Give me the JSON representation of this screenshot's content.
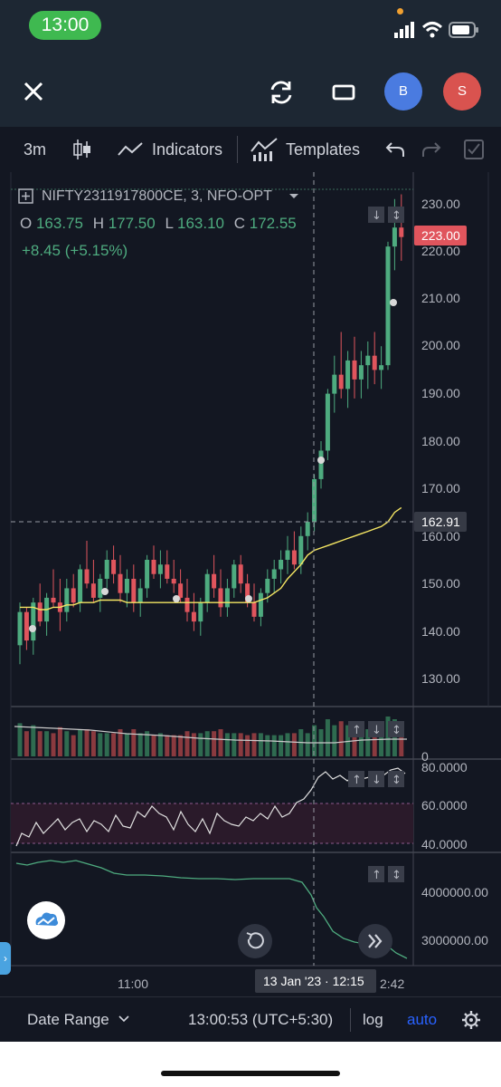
{
  "status_bar": {
    "time": "13:00"
  },
  "top_bar": {
    "close_icon": "close-icon",
    "refresh_icon": "refresh-icon",
    "fullscreen_icon": "window-icon",
    "avatars": [
      {
        "letter": "B",
        "color": "#4a7be0"
      },
      {
        "letter": "S",
        "color": "#d9534f"
      }
    ]
  },
  "toolbar": {
    "interval": "3m",
    "indicators_label": "Indicators",
    "templates_label": "Templates"
  },
  "legend": {
    "symbol": "NIFTY2311917800CE, 3, NFO-OPT",
    "o_label": "O",
    "o_value": "163.75",
    "h_label": "H",
    "h_value": "177.50",
    "l_label": "L",
    "l_value": "163.10",
    "c_label": "C",
    "c_value": "172.55",
    "change": "+8.45 (+5.15%)"
  },
  "price_axis": {
    "labels": [
      "230.00",
      "220.00",
      "210.00",
      "200.00",
      "190.00",
      "180.00",
      "170.00",
      "160.00",
      "150.00",
      "140.00",
      "130.00"
    ],
    "last_price": "223.00",
    "crosshair_price": "162.91"
  },
  "rsi_axis": {
    "labels": [
      "80.0000",
      "60.0000",
      "40.0000"
    ]
  },
  "obv_axis": {
    "labels": [
      "4000000.00",
      "3000000.00"
    ]
  },
  "volume_axis": {
    "labels": [
      "0"
    ]
  },
  "time_axis": {
    "label_1100": "11:00",
    "crosshair_time": "13 Jan '23  ·  12:15",
    "partial_label": "2:42"
  },
  "bottom_bar": {
    "date_range": "Date Range",
    "clock": "13:00:53 (UTC+5:30)",
    "log": "log",
    "auto": "auto"
  },
  "colors": {
    "up": "#4eab7f",
    "down": "#e0555d",
    "ma": "#f5e663",
    "background": "#131722",
    "accent": "#2962ff"
  },
  "chart_data": {
    "type": "candlestick",
    "price_range": [
      125,
      232
    ],
    "candles": [
      [
        137,
        146,
        133,
        144
      ],
      [
        144,
        145,
        136,
        138
      ],
      [
        138,
        147,
        135,
        146
      ],
      [
        146,
        150,
        141,
        142
      ],
      [
        142,
        148,
        139,
        147
      ],
      [
        147,
        153,
        145,
        146
      ],
      [
        146,
        151,
        140,
        144
      ],
      [
        144,
        151,
        142,
        149
      ],
      [
        149,
        152,
        145,
        146
      ],
      [
        146,
        154,
        144,
        153
      ],
      [
        153,
        159,
        149,
        150
      ],
      [
        150,
        155,
        146,
        147
      ],
      [
        147,
        152,
        144,
        151
      ],
      [
        151,
        157,
        149,
        155
      ],
      [
        155,
        158,
        150,
        152
      ],
      [
        152,
        156,
        146,
        148
      ],
      [
        148,
        153,
        145,
        151
      ],
      [
        151,
        154,
        144,
        146
      ],
      [
        146,
        151,
        143,
        149
      ],
      [
        149,
        156,
        147,
        155
      ],
      [
        155,
        158,
        151,
        152
      ],
      [
        152,
        157,
        149,
        154
      ],
      [
        154,
        157,
        150,
        151
      ],
      [
        151,
        155,
        148,
        150
      ],
      [
        150,
        153,
        146,
        147
      ],
      [
        147,
        151,
        142,
        144
      ],
      [
        144,
        148,
        140,
        142
      ],
      [
        142,
        147,
        139,
        146
      ],
      [
        146,
        153,
        144,
        152
      ],
      [
        152,
        156,
        147,
        149
      ],
      [
        149,
        153,
        143,
        145
      ],
      [
        145,
        151,
        143,
        149
      ],
      [
        149,
        155,
        147,
        154
      ],
      [
        154,
        156,
        148,
        150
      ],
      [
        150,
        152,
        145,
        146
      ],
      [
        146,
        150,
        142,
        143
      ],
      [
        143,
        149,
        141,
        148
      ],
      [
        148,
        153,
        146,
        151
      ],
      [
        151,
        155,
        148,
        153
      ],
      [
        153,
        157,
        150,
        155
      ],
      [
        155,
        160,
        152,
        157
      ],
      [
        157,
        161,
        153,
        154
      ],
      [
        154,
        162,
        152,
        160
      ],
      [
        160,
        165,
        157,
        163
      ],
      [
        163,
        173,
        161,
        172
      ],
      [
        172,
        180,
        170,
        178
      ],
      [
        178,
        191,
        176,
        190
      ],
      [
        190,
        198,
        186,
        194
      ],
      [
        194,
        203,
        189,
        191
      ],
      [
        191,
        199,
        187,
        197
      ],
      [
        197,
        202,
        189,
        193
      ],
      [
        193,
        199,
        189,
        196
      ],
      [
        196,
        201,
        191,
        198
      ],
      [
        198,
        203,
        192,
        195
      ],
      [
        195,
        200,
        191,
        196
      ],
      [
        196,
        222,
        195,
        221
      ],
      [
        221,
        231,
        216,
        225
      ],
      [
        225,
        232,
        218,
        223
      ]
    ],
    "ma_values": [
      145,
      145,
      145,
      144.5,
      144.5,
      145,
      145,
      145.5,
      145.5,
      146,
      146,
      146,
      146.5,
      146.5,
      146.5,
      146.5,
      146,
      146,
      146,
      146,
      146,
      146,
      146,
      146,
      146,
      146,
      146,
      146,
      146,
      146,
      146,
      146,
      146,
      146,
      146,
      146,
      146.5,
      147,
      148,
      149,
      151,
      152.5,
      154,
      156,
      157,
      157.5,
      158,
      158.5,
      159,
      159.5,
      160,
      160.5,
      161,
      161.5,
      162,
      163,
      165,
      166
    ]
  }
}
